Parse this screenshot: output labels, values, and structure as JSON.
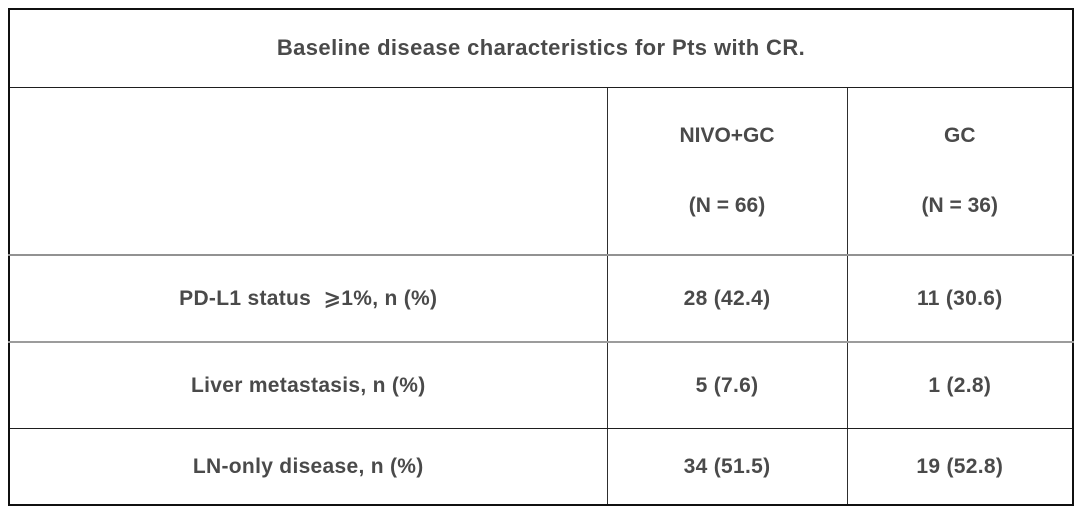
{
  "table": {
    "title": "Baseline disease characteristics for Pts with CR.",
    "columns": [
      {
        "name": "NIVO+GC",
        "n": "(N = 66)"
      },
      {
        "name": "GC",
        "n": "(N = 36)"
      }
    ],
    "rows": [
      {
        "label": "PD-L1 status  ⩾1%, n (%)",
        "values": [
          "28 (42.4)",
          "11 (30.6)"
        ]
      },
      {
        "label": "Liver metastasis, n (%)",
        "values": [
          "5 (7.6)",
          "1 (2.8)"
        ]
      },
      {
        "label": "LN-only disease, n (%)",
        "values": [
          "34 (51.5)",
          "19 (52.8)"
        ]
      }
    ],
    "colors": {
      "text": "#4a4a4a",
      "border_outer": "#101010",
      "border_inner": "#2e2e2e",
      "row_divider": "#9c9c9c",
      "background": "#ffffff"
    }
  },
  "chart_data": {
    "type": "table",
    "title": "Baseline disease characteristics for Pts with CR.",
    "column_headers": [
      "",
      "NIVO+GC (N = 66)",
      "GC (N = 36)"
    ],
    "rows": [
      [
        "PD-L1 status ⩾1%, n (%)",
        "28 (42.4)",
        "11 (30.6)"
      ],
      [
        "Liver metastasis, n (%)",
        "5 (7.6)",
        "1 (2.8)"
      ],
      [
        "LN-only disease, n (%)",
        "34 (51.5)",
        "19 (52.8)"
      ]
    ]
  }
}
